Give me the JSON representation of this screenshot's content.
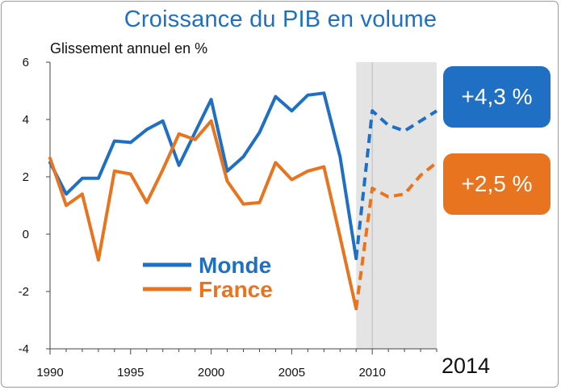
{
  "title": "Croissance du PIB en volume",
  "unit_label": "Glissement annuel en %",
  "year_label": "2014",
  "callouts": {
    "monde": "+4,3 %",
    "france": "+2,5 %"
  },
  "colors": {
    "monde": "#1f6fc4",
    "france": "#e97420",
    "forecast_band": "#e4e4e4",
    "title": "#1f6fc4"
  },
  "chart_data": {
    "type": "line",
    "title": "Croissance du PIB en volume",
    "ylabel": "Glissement annuel en %",
    "xlabel": "",
    "x": [
      1990,
      1991,
      1992,
      1993,
      1994,
      1995,
      1996,
      1997,
      1998,
      1999,
      2000,
      2001,
      2002,
      2003,
      2004,
      2005,
      2006,
      2007,
      2008,
      2009,
      2010,
      2011,
      2012,
      2013,
      2014
    ],
    "xticks": [
      "1990",
      "1995",
      "2000",
      "2005",
      "2010"
    ],
    "xtick_values": [
      1990,
      1995,
      2000,
      2005,
      2010
    ],
    "yticks": [
      "6",
      "4",
      "2",
      "0",
      "-2",
      "-4"
    ],
    "ytick_values": [
      6,
      4,
      2,
      0,
      -2,
      -4
    ],
    "xlim": [
      1990,
      2014
    ],
    "ylim": [
      -4,
      6
    ],
    "forecast_start": 2009,
    "forecast_shaded_range": [
      2009,
      2014
    ],
    "legend_position": "bottom-left inside plot",
    "grid": false,
    "series": [
      {
        "name": "Monde",
        "color": "#1f6fc4",
        "values": [
          2.5,
          1.4,
          1.95,
          1.95,
          3.25,
          3.2,
          3.65,
          3.95,
          2.4,
          3.55,
          4.7,
          2.2,
          2.7,
          3.55,
          4.8,
          4.3,
          4.85,
          4.92,
          2.7,
          -0.85,
          4.3,
          3.8,
          3.6,
          3.95,
          4.3
        ]
      },
      {
        "name": "France",
        "color": "#e97420",
        "values": [
          2.65,
          1.0,
          1.4,
          -0.9,
          2.2,
          2.1,
          1.1,
          2.25,
          3.5,
          3.3,
          3.95,
          1.85,
          1.05,
          1.1,
          2.5,
          1.9,
          2.2,
          2.35,
          -0.1,
          -2.6,
          1.6,
          1.3,
          1.4,
          2.05,
          2.5
        ]
      }
    ]
  }
}
